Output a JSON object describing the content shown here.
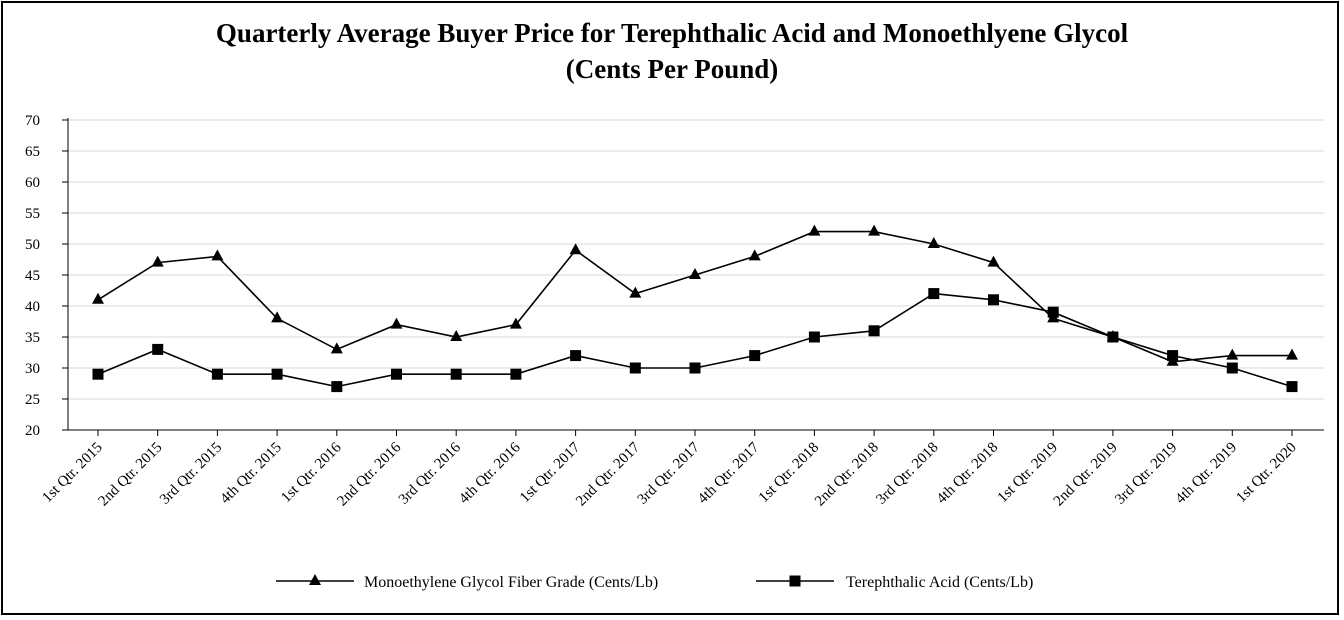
{
  "chart_data": {
    "type": "line",
    "title": "Quarterly Average Buyer Price for Terephthalic Acid and Monoethlyene Glycol",
    "subtitle": "(Cents Per Pound)",
    "xlabel": "",
    "ylabel": "",
    "ylim": [
      20,
      70
    ],
    "y_ticks": [
      "20",
      "25",
      "30",
      "35",
      "40",
      "45",
      "50",
      "55",
      "60",
      "65",
      "70"
    ],
    "grid": true,
    "legend_position": "bottom",
    "categories": [
      "1st Qtr. 2015",
      "2nd Qtr. 2015",
      "3rd Qtr. 2015",
      "4th Qtr. 2015",
      "1st Qtr. 2016",
      "2nd Qtr. 2016",
      "3rd Qtr. 2016",
      "4th Qtr. 2016",
      "1st Qtr. 2017",
      "2nd Qtr. 2017",
      "3rd Qtr. 2017",
      "4th Qtr. 2017",
      "1st Qtr. 2018",
      "2nd Qtr. 2018",
      "3rd Qtr. 2018",
      "4th Qtr. 2018",
      "1st Qtr. 2019",
      "2nd Qtr. 2019",
      "3rd Qtr. 2019",
      "4th Qtr. 2019",
      "1st Qtr. 2020"
    ],
    "series": [
      {
        "name": "Monoethylene Glycol Fiber Grade (Cents/Lb)",
        "marker": "triangle",
        "color": "#000000",
        "values": [
          41,
          47,
          48,
          38,
          33,
          37,
          35,
          37,
          49,
          42,
          45,
          48,
          52,
          52,
          50,
          47,
          38,
          35,
          31,
          32,
          32
        ]
      },
      {
        "name": "Terephthalic Acid (Cents/Lb)",
        "marker": "square",
        "color": "#000000",
        "values": [
          29,
          33,
          29,
          29,
          27,
          29,
          29,
          29,
          32,
          30,
          30,
          32,
          35,
          36,
          42,
          41,
          39,
          35,
          32,
          30,
          27
        ]
      }
    ]
  }
}
